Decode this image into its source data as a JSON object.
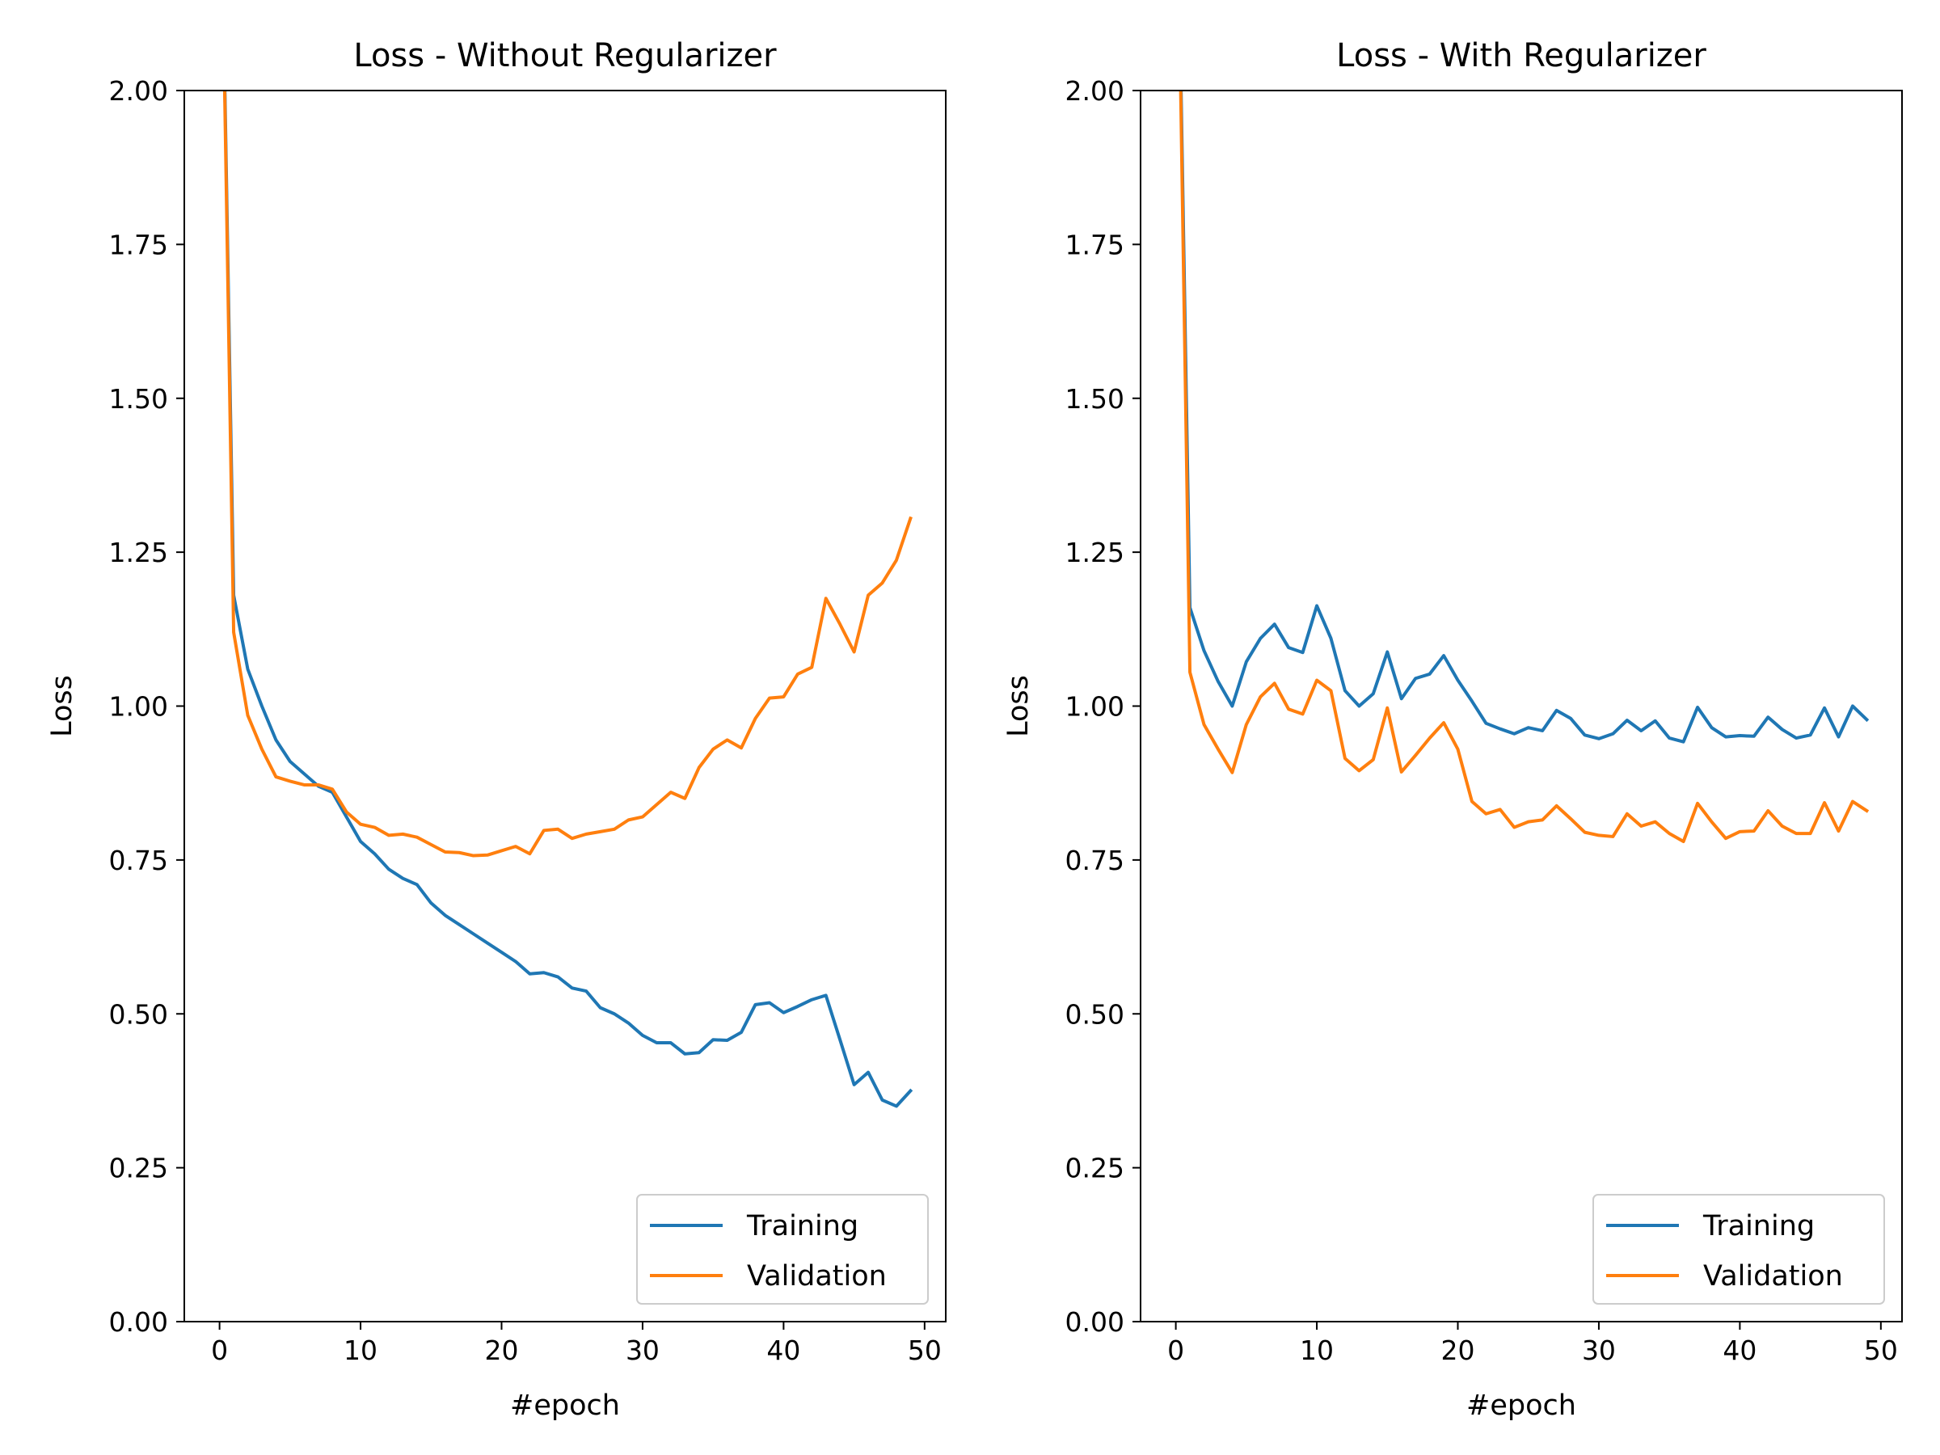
{
  "chart_data": [
    {
      "type": "line",
      "title": "Loss - Without Regularizer",
      "xlabel": "#epoch",
      "ylabel": "Loss",
      "xlim": [
        -2.5,
        51.5
      ],
      "ylim": [
        0,
        2
      ],
      "x_ticks": [
        0,
        10,
        20,
        30,
        40,
        50
      ],
      "x_tick_labels": [
        "0",
        "10",
        "20",
        "30",
        "40",
        "50"
      ],
      "y_ticks": [
        0,
        0.25,
        0.5,
        0.75,
        1.0,
        1.25,
        1.5,
        1.75,
        2.0
      ],
      "y_tick_labels": [
        "0.00",
        "0.25",
        "0.50",
        "0.75",
        "1.00",
        "1.25",
        "1.50",
        "1.75",
        "2.00"
      ],
      "grid": false,
      "legend_position": "bottom-right",
      "x": [
        0,
        1,
        2,
        3,
        4,
        5,
        6,
        7,
        8,
        9,
        10,
        11,
        12,
        13,
        14,
        15,
        16,
        17,
        18,
        19,
        20,
        21,
        22,
        23,
        24,
        25,
        26,
        27,
        28,
        29,
        30,
        31,
        32,
        33,
        34,
        35,
        36,
        37,
        38,
        39,
        40,
        41,
        42,
        43,
        44,
        45,
        46,
        47,
        48,
        49
      ],
      "series": [
        {
          "name": "Training",
          "color": "#1f77b4",
          "values": [
            2.5,
            1.18,
            1.06,
            1.0,
            0.945,
            0.91,
            0.89,
            0.87,
            0.86,
            0.82,
            0.78,
            0.76,
            0.735,
            0.72,
            0.71,
            0.68,
            0.66,
            0.645,
            0.63,
            0.615,
            0.6,
            0.585,
            0.565,
            0.567,
            0.56,
            0.542,
            0.537,
            0.51,
            0.5,
            0.485,
            0.465,
            0.453,
            0.453,
            0.435,
            0.437,
            0.458,
            0.457,
            0.47,
            0.515,
            0.518,
            0.502,
            0.512,
            0.523,
            0.53,
            0.458,
            0.385,
            0.405,
            0.36,
            0.35,
            0.375
          ]
        },
        {
          "name": "Validation",
          "color": "#ff7f0e",
          "values": [
            2.5,
            1.12,
            0.985,
            0.93,
            0.885,
            0.878,
            0.872,
            0.872,
            0.865,
            0.828,
            0.808,
            0.803,
            0.79,
            0.792,
            0.787,
            0.775,
            0.763,
            0.762,
            0.757,
            0.758,
            0.765,
            0.772,
            0.76,
            0.798,
            0.8,
            0.785,
            0.792,
            0.796,
            0.8,
            0.815,
            0.82,
            0.84,
            0.86,
            0.85,
            0.9,
            0.93,
            0.945,
            0.932,
            0.98,
            1.013,
            1.015,
            1.052,
            1.063,
            1.175,
            1.133,
            1.088,
            1.18,
            1.2,
            1.237,
            1.305
          ]
        }
      ]
    },
    {
      "type": "line",
      "title": "Loss - With Regularizer",
      "xlabel": "#epoch",
      "ylabel": "Loss",
      "xlim": [
        -2.5,
        51.5
      ],
      "ylim": [
        0,
        2
      ],
      "x_ticks": [
        0,
        10,
        20,
        30,
        40,
        50
      ],
      "x_tick_labels": [
        "0",
        "10",
        "20",
        "30",
        "40",
        "50"
      ],
      "y_ticks": [
        0,
        0.25,
        0.5,
        0.75,
        1.0,
        1.25,
        1.5,
        1.75,
        2.0
      ],
      "y_tick_labels": [
        "0.00",
        "0.25",
        "0.50",
        "0.75",
        "1.00",
        "1.25",
        "1.50",
        "1.75",
        "2.00"
      ],
      "grid": false,
      "legend_position": "bottom-right",
      "x": [
        0,
        1,
        2,
        3,
        4,
        5,
        6,
        7,
        8,
        9,
        10,
        11,
        12,
        13,
        14,
        15,
        16,
        17,
        18,
        19,
        20,
        21,
        22,
        23,
        24,
        25,
        26,
        27,
        28,
        29,
        30,
        31,
        32,
        33,
        34,
        35,
        36,
        37,
        38,
        39,
        40,
        41,
        42,
        43,
        44,
        45,
        46,
        47,
        48,
        49
      ],
      "series": [
        {
          "name": "Training",
          "color": "#1f77b4",
          "values": [
            2.5,
            1.16,
            1.09,
            1.04,
            1.0,
            1.072,
            1.11,
            1.133,
            1.095,
            1.087,
            1.163,
            1.11,
            1.025,
            1.0,
            1.02,
            1.088,
            1.012,
            1.045,
            1.052,
            1.082,
            1.042,
            1.008,
            0.972,
            0.963,
            0.955,
            0.965,
            0.96,
            0.993,
            0.98,
            0.953,
            0.947,
            0.955,
            0.977,
            0.96,
            0.976,
            0.948,
            0.942,
            0.998,
            0.965,
            0.95,
            0.952,
            0.951,
            0.982,
            0.962,
            0.948,
            0.953,
            0.997,
            0.95,
            1.0,
            0.978
          ]
        },
        {
          "name": "Validation",
          "color": "#ff7f0e",
          "values": [
            2.5,
            1.055,
            0.97,
            0.93,
            0.892,
            0.97,
            1.015,
            1.037,
            0.995,
            0.987,
            1.042,
            1.025,
            0.915,
            0.895,
            0.913,
            0.997,
            0.893,
            0.92,
            0.948,
            0.973,
            0.93,
            0.845,
            0.825,
            0.832,
            0.803,
            0.812,
            0.815,
            0.838,
            0.817,
            0.795,
            0.79,
            0.788,
            0.825,
            0.805,
            0.812,
            0.793,
            0.78,
            0.842,
            0.812,
            0.785,
            0.796,
            0.797,
            0.83,
            0.805,
            0.793,
            0.793,
            0.843,
            0.797,
            0.845,
            0.83
          ]
        }
      ]
    }
  ]
}
